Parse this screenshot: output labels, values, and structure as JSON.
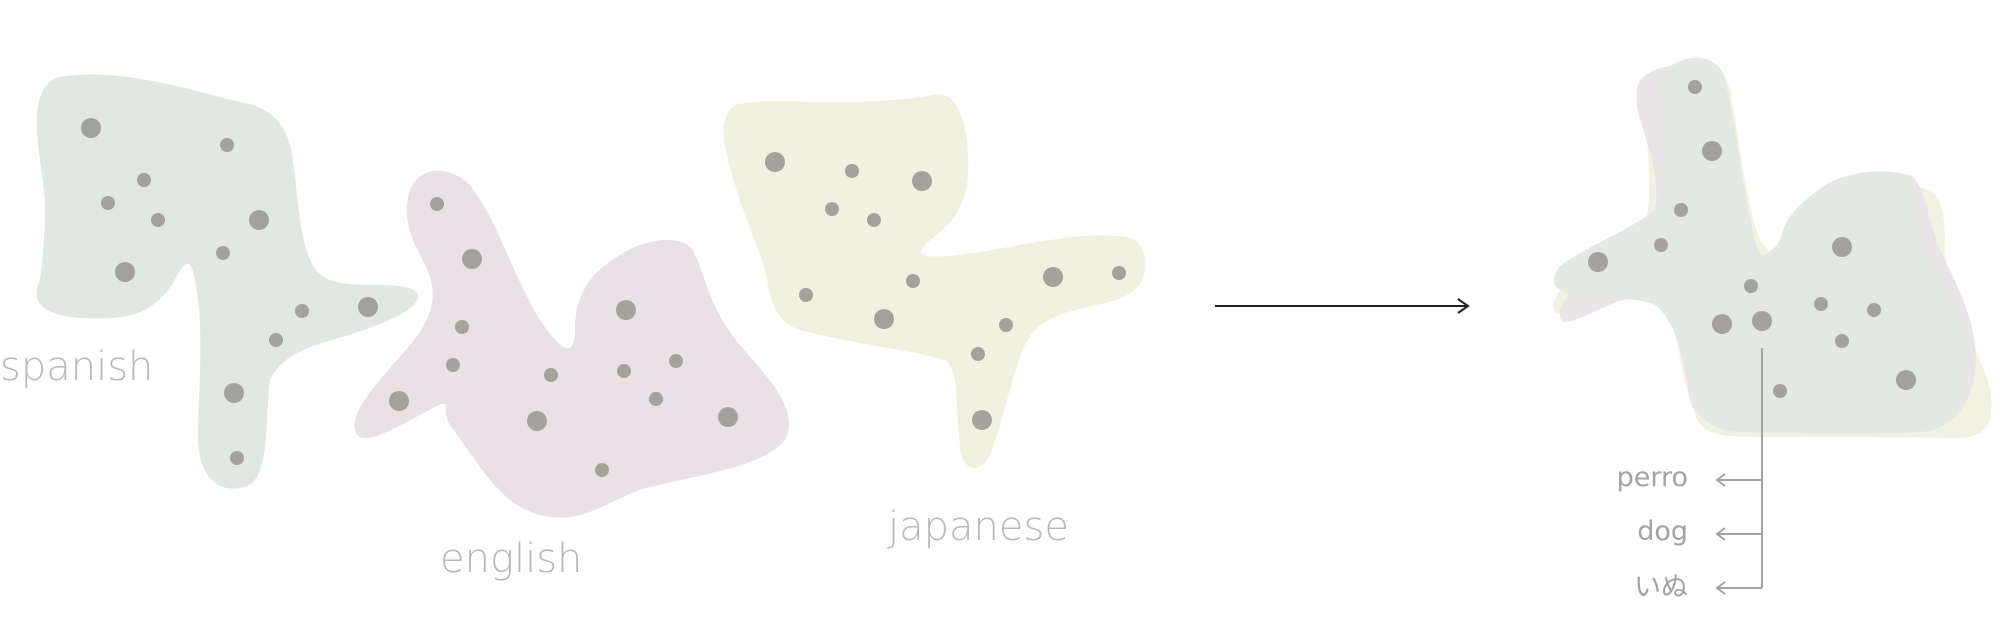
{
  "languages": {
    "spanish": "spanish",
    "english": "english",
    "japanese": "japanese"
  },
  "words": [
    "perro",
    "dog",
    "いぬ"
  ],
  "colors": {
    "spanish_blob": "#e1e8e2",
    "english_blob": "#e8e2e6",
    "japanese_blob": "#f1f1e0",
    "dots": "#a3a39b",
    "label_text": "#b9b9b9",
    "arrow": "#222222"
  }
}
